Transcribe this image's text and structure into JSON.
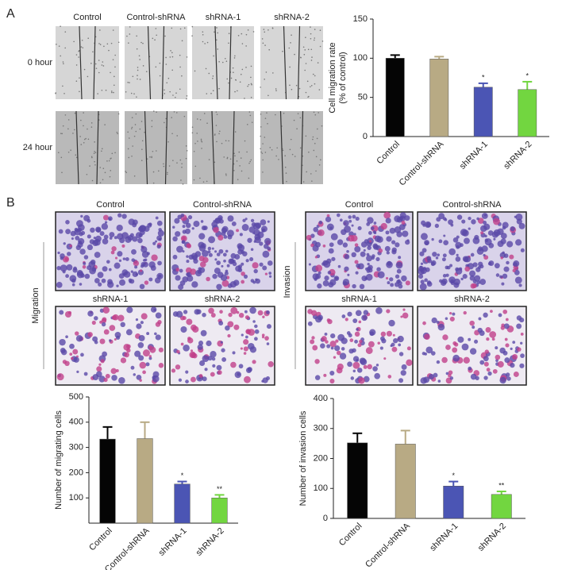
{
  "panels": {
    "a": {
      "letter": "A",
      "columns": [
        "Control",
        "Control-shRNA",
        "shRNA-1",
        "shRNA-2"
      ],
      "rows": [
        "0 hour",
        "24 hour"
      ]
    },
    "b": {
      "letter": "B",
      "migration": {
        "label": "Migration",
        "columns": [
          "Control",
          "Control-shRNA",
          "shRNA-1",
          "shRNA-2"
        ]
      },
      "invasion": {
        "label": "Invasion",
        "columns": [
          "Control",
          "Control-shRNA",
          "shRNA-1",
          "shRNA-2"
        ]
      }
    }
  },
  "chart_data": [
    {
      "type": "bar",
      "ylabel": [
        "Cell migration rate",
        "(% of control)"
      ],
      "categories": [
        "Control",
        "Control-shRNA",
        "shRNA-1",
        "shRNA-2"
      ],
      "values": [
        100,
        99,
        63,
        60
      ],
      "errors": [
        4,
        3,
        5,
        10
      ],
      "annotations": [
        null,
        null,
        "*",
        "*"
      ],
      "colors": [
        "#050505",
        "#b8aa84",
        "#4b55b4",
        "#72d640"
      ],
      "ylim": [
        0,
        150
      ],
      "yticks": [
        0,
        50,
        100,
        150
      ]
    },
    {
      "type": "bar",
      "ylabel": [
        "Number of migrating cells"
      ],
      "categories": [
        "Control",
        "Control-shRNA",
        "shRNA-1",
        "shRNA-2"
      ],
      "values": [
        333,
        335,
        155,
        100
      ],
      "errors": [
        48,
        65,
        10,
        12
      ],
      "annotations": [
        null,
        null,
        "*",
        "**"
      ],
      "colors": [
        "#050505",
        "#b8aa84",
        "#4b55b4",
        "#72d640"
      ],
      "ylim": [
        0,
        500
      ],
      "yticks": [
        100,
        200,
        300,
        400,
        500
      ]
    },
    {
      "type": "bar",
      "ylabel": [
        "Number of invasion cells"
      ],
      "categories": [
        "Control",
        "Control-shRNA",
        "shRNA-1",
        "shRNA-2"
      ],
      "values": [
        252,
        248,
        108,
        80
      ],
      "errors": [
        32,
        45,
        15,
        10
      ],
      "annotations": [
        null,
        null,
        "*",
        "**"
      ],
      "colors": [
        "#050505",
        "#b8aa84",
        "#4b55b4",
        "#72d640"
      ],
      "ylim": [
        0,
        400
      ],
      "yticks": [
        0,
        100,
        200,
        300,
        400
      ]
    }
  ]
}
